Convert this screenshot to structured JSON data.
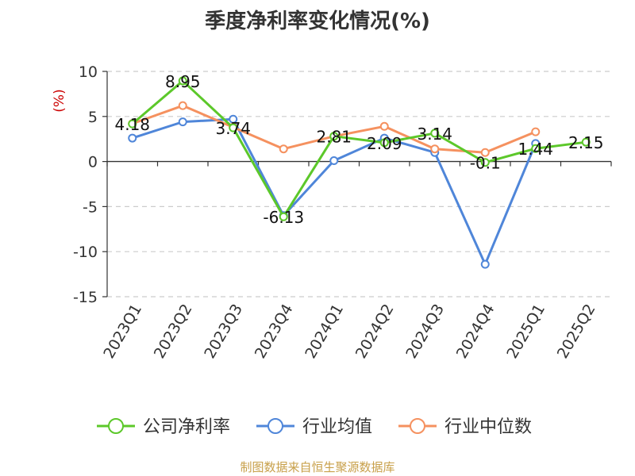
{
  "chart_data": {
    "type": "line",
    "title": "季度净利率变化情况(%)",
    "ylabel": "(%)",
    "xlabel": "",
    "categories": [
      "2023Q1",
      "2023Q2",
      "2023Q3",
      "2023Q4",
      "2024Q1",
      "2024Q2",
      "2024Q3",
      "2024Q4",
      "2025Q1",
      "2025Q2"
    ],
    "ylim": [
      -15,
      10
    ],
    "yticks": [
      10,
      5,
      0,
      -5,
      -10,
      -15
    ],
    "grid": "horizontal-dashed",
    "legend_position": "bottom",
    "series": [
      {
        "name": "公司净利率",
        "color": "#5cc82a",
        "values": [
          4.18,
          8.95,
          3.74,
          -6.13,
          2.81,
          2.09,
          3.14,
          -0.1,
          1.44,
          2.15
        ],
        "labels": [
          "4.18",
          "8.95",
          "3.74",
          "-6.13",
          "2.81",
          "2.09",
          "3.14",
          "-0.1",
          "1.44",
          "2.15"
        ]
      },
      {
        "name": "行业均值",
        "color": "#4f86d9",
        "values": [
          2.6,
          4.4,
          4.7,
          -6.0,
          0.1,
          2.6,
          1.0,
          -11.4,
          2.0,
          null
        ]
      },
      {
        "name": "行业中位数",
        "color": "#f5915f",
        "values": [
          4.2,
          6.2,
          3.8,
          1.4,
          2.8,
          3.9,
          1.4,
          1.0,
          3.3,
          null
        ]
      }
    ]
  },
  "source_note": "制图数据来自恒生聚源数据库"
}
